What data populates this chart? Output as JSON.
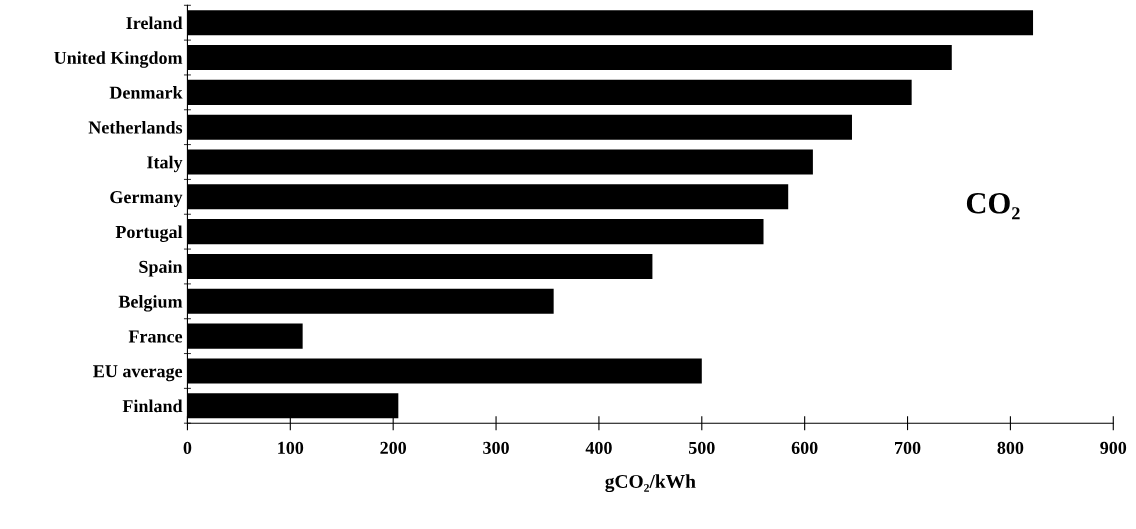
{
  "chart_data": {
    "type": "bar",
    "orientation": "horizontal",
    "categories": [
      "Ireland",
      "United Kingdom",
      "Denmark",
      "Netherlands",
      "Italy",
      "Germany",
      "Portugal",
      "Spain",
      "Belgium",
      "France",
      "EU average",
      "Finland"
    ],
    "values": [
      822,
      743,
      704,
      646,
      608,
      584,
      560,
      452,
      356,
      112,
      500,
      205
    ],
    "color": "#000000",
    "xlim": [
      0,
      900
    ],
    "xticks": [
      0,
      100,
      200,
      300,
      400,
      500,
      600,
      700,
      800,
      900
    ],
    "xlabel": "gCO₂/kWh",
    "annotations": [
      "CO₂"
    ],
    "grid": false,
    "legend": false
  }
}
